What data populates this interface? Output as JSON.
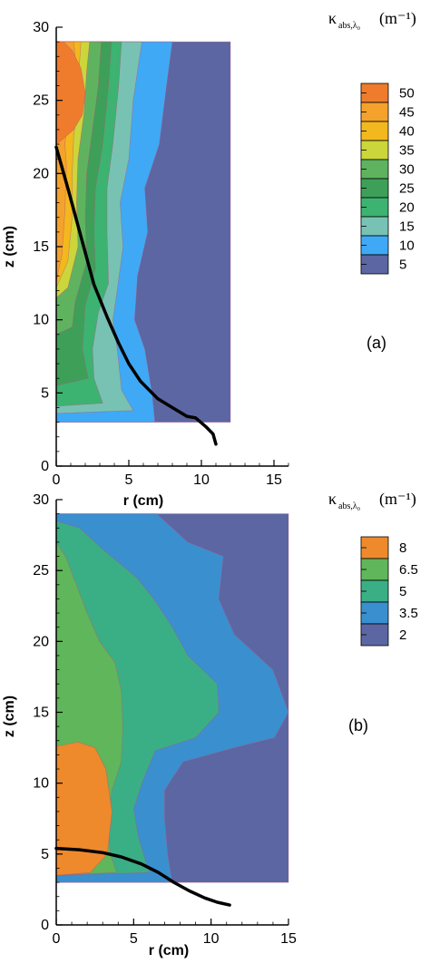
{
  "colors": {
    "c2": "#5b66a3",
    "c5": "#5b66a3",
    "c10": "#3fa9f5",
    "c15": "#78c2b4",
    "c20": "#3cb371",
    "c25": "#3e9f59",
    "c30": "#5fb35f",
    "c35": "#cbd63a",
    "c40": "#f2b81e",
    "c45": "#f4a22c",
    "c50": "#ee7c2c",
    "b2": "#5b66a3",
    "b35": "#3a8fcf",
    "b5": "#3aaf85",
    "b65": "#60b65a",
    "b8": "#ee8a2c",
    "trace": "#000000"
  },
  "chart_data": [
    {
      "type": "contour",
      "panel_label": "(a)",
      "xlabel": "r (cm)",
      "ylabel": "z (cm)",
      "xlim": [
        0,
        16
      ],
      "ylim": [
        0,
        30
      ],
      "xticks": [
        "0",
        "5",
        "10",
        "15"
      ],
      "yticks": [
        "0",
        "5",
        "10",
        "15",
        "20",
        "25",
        "30"
      ],
      "legend": {
        "title_main": "κ",
        "title_sub": "abs,λ₀",
        "title_unit": "(m⁻¹)",
        "levels": [
          "50",
          "45",
          "40",
          "35",
          "30",
          "25",
          "20",
          "15",
          "10",
          "5"
        ]
      },
      "bands": [
        {
          "level": 5,
          "color_key": "c5",
          "points": [
            [
              0,
              3
            ],
            [
              12,
              3
            ],
            [
              12,
              29
            ],
            [
              0,
              29
            ]
          ]
        },
        {
          "level": 10,
          "color_key": "c10",
          "points": [
            [
              0,
              3
            ],
            [
              6.8,
              3
            ],
            [
              6.6,
              5
            ],
            [
              6.1,
              8
            ],
            [
              5.4,
              10
            ],
            [
              5.6,
              13
            ],
            [
              6.3,
              16
            ],
            [
              6.1,
              19
            ],
            [
              7.1,
              22
            ],
            [
              7.6,
              26
            ],
            [
              8,
              29
            ],
            [
              0,
              29
            ]
          ]
        },
        {
          "level": 15,
          "color_key": "c15",
          "points": [
            [
              0,
              3.6
            ],
            [
              5.3,
              3.8
            ],
            [
              4.5,
              5.2
            ],
            [
              4.2,
              8
            ],
            [
              3.9,
              10
            ],
            [
              4.2,
              12
            ],
            [
              4.6,
              15
            ],
            [
              4.4,
              18
            ],
            [
              5,
              21
            ],
            [
              5.3,
              25
            ],
            [
              5.9,
              29
            ],
            [
              0,
              29
            ]
          ]
        },
        {
          "level": 20,
          "color_key": "c20",
          "points": [
            [
              0,
              4.1
            ],
            [
              3.2,
              4.3
            ],
            [
              2.6,
              6
            ],
            [
              2.5,
              8
            ],
            [
              2.9,
              10.5
            ],
            [
              3.6,
              12.5
            ],
            [
              3.5,
              16
            ],
            [
              3.5,
              19
            ],
            [
              3.9,
              22
            ],
            [
              4.3,
              26
            ],
            [
              4.5,
              29
            ],
            [
              0,
              29
            ]
          ]
        },
        {
          "level": 25,
          "color_key": "c25",
          "points": [
            [
              0,
              5.5
            ],
            [
              2.2,
              6
            ],
            [
              1.8,
              8
            ],
            [
              2,
              11
            ],
            [
              2.7,
              13.5
            ],
            [
              2.6,
              16
            ],
            [
              2.7,
              19
            ],
            [
              3.2,
              22
            ],
            [
              3.6,
              26
            ],
            [
              3.8,
              29
            ],
            [
              0,
              29
            ]
          ]
        },
        {
          "level": 30,
          "color_key": "c30",
          "points": [
            [
              0,
              9
            ],
            [
              1.1,
              9.5
            ],
            [
              1.3,
              11.2
            ],
            [
              2.1,
              14
            ],
            [
              2,
              17
            ],
            [
              2.1,
              20
            ],
            [
              2.5,
              23
            ],
            [
              2.9,
              26
            ],
            [
              3.1,
              29
            ],
            [
              0,
              29
            ]
          ]
        },
        {
          "level": 35,
          "color_key": "c35",
          "points": [
            [
              0,
              11.5
            ],
            [
              0.8,
              12.2
            ],
            [
              1.5,
              15
            ],
            [
              1.4,
              18
            ],
            [
              1.5,
              21
            ],
            [
              1.9,
              24
            ],
            [
              2.1,
              27
            ],
            [
              2.3,
              29
            ],
            [
              0,
              29
            ]
          ]
        },
        {
          "level": 40,
          "color_key": "c40",
          "points": [
            [
              0,
              12.2
            ],
            [
              0.8,
              14
            ],
            [
              1.1,
              17
            ],
            [
              1.1,
              20
            ],
            [
              1.2,
              22.5
            ],
            [
              1.5,
              25
            ],
            [
              1.6,
              27.5
            ],
            [
              1.7,
              29
            ],
            [
              0,
              29
            ]
          ]
        },
        {
          "level": 45,
          "color_key": "c45",
          "points": [
            [
              0,
              12.6
            ],
            [
              0.4,
              14.5
            ],
            [
              0.6,
              17.5
            ],
            [
              0.7,
              20.5
            ],
            [
              0.6,
              22
            ],
            [
              0.8,
              24
            ],
            [
              1.2,
              26
            ],
            [
              1.3,
              28
            ],
            [
              1.2,
              29
            ],
            [
              0,
              29
            ]
          ]
        },
        {
          "level": 50,
          "color_key": "c50",
          "points": [
            [
              0,
              22
            ],
            [
              0.4,
              22.3
            ],
            [
              1.2,
              23
            ],
            [
              1.8,
              24
            ],
            [
              2,
              25.5
            ],
            [
              1.7,
              27.2
            ],
            [
              1.1,
              28.4
            ],
            [
              0.5,
              29
            ],
            [
              0,
              29
            ]
          ]
        }
      ],
      "traces": [
        {
          "points": [
            [
              0,
              21.8
            ],
            [
              0.8,
              19
            ],
            [
              1.4,
              16.8
            ],
            [
              2,
              14.6
            ],
            [
              2.6,
              12.4
            ],
            [
              3.5,
              10.2
            ],
            [
              4.3,
              8.4
            ],
            [
              5,
              7
            ],
            [
              5.8,
              5.8
            ],
            [
              7,
              4.6
            ],
            [
              8,
              4
            ],
            [
              9,
              3.4
            ],
            [
              9.6,
              3.3
            ],
            [
              10.3,
              2.7
            ],
            [
              10.8,
              2.2
            ],
            [
              11,
              1.5
            ]
          ]
        }
      ],
      "box": {
        "xmax": 12,
        "ymin": 3,
        "ymax": 29
      }
    },
    {
      "type": "contour",
      "panel_label": "(b)",
      "xlabel": "r (cm)",
      "ylabel": "z (cm)",
      "xlim": [
        0,
        15
      ],
      "ylim": [
        0,
        30
      ],
      "xticks": [
        "0",
        "5",
        "10",
        "15"
      ],
      "yticks": [
        "0",
        "5",
        "10",
        "15",
        "20",
        "25",
        "30"
      ],
      "legend": {
        "title_main": "κ",
        "title_sub": "abs,λ₀",
        "title_unit": "(m⁻¹)",
        "levels": [
          "8",
          "6.5",
          "5",
          "3.5",
          "2"
        ]
      },
      "bands": [
        {
          "level": 2,
          "color_key": "b2",
          "points": [
            [
              0,
              3
            ],
            [
              15,
              3
            ],
            [
              15,
              29
            ],
            [
              0,
              29
            ]
          ]
        },
        {
          "level": 3.5,
          "color_key": "b35",
          "points": [
            [
              0,
              3
            ],
            [
              7.5,
              3
            ],
            [
              7.2,
              5
            ],
            [
              7,
              7.5
            ],
            [
              7,
              9.5
            ],
            [
              8.2,
              11.5
            ],
            [
              11.5,
              12.5
            ],
            [
              14.1,
              13.2
            ],
            [
              15,
              15
            ],
            [
              14,
              18
            ],
            [
              11.5,
              20.5
            ],
            [
              10.5,
              23
            ],
            [
              10.8,
              26
            ],
            [
              8.5,
              27
            ],
            [
              6.5,
              29
            ],
            [
              0,
              29
            ]
          ]
        },
        {
          "level": 5,
          "color_key": "b5",
          "points": [
            [
              0,
              3.5
            ],
            [
              6,
              3.7
            ],
            [
              5.3,
              6.2
            ],
            [
              5,
              8.2
            ],
            [
              5.6,
              10.2
            ],
            [
              6.4,
              12.3
            ],
            [
              9,
              13.2
            ],
            [
              10.5,
              15
            ],
            [
              10.4,
              17
            ],
            [
              8.5,
              19
            ],
            [
              7.5,
              21
            ],
            [
              6.3,
              23
            ],
            [
              5.2,
              24.5
            ],
            [
              3,
              26.5
            ],
            [
              1.5,
              28
            ],
            [
              0,
              28.5
            ]
          ]
        },
        {
          "level": 6.5,
          "color_key": "b65",
          "points": [
            [
              0,
              3.5
            ],
            [
              3.9,
              3.7
            ],
            [
              3.5,
              5
            ],
            [
              3.3,
              7.2
            ],
            [
              3.6,
              9.5
            ],
            [
              4.2,
              11.5
            ],
            [
              4.3,
              14
            ],
            [
              4.2,
              16.5
            ],
            [
              3.8,
              18.5
            ],
            [
              2.8,
              20
            ],
            [
              2,
              22
            ],
            [
              1.3,
              24
            ],
            [
              0.6,
              26
            ],
            [
              0,
              27
            ]
          ]
        },
        {
          "level": 8,
          "color_key": "b8",
          "points": [
            [
              0,
              3.5
            ],
            [
              2.2,
              3.7
            ],
            [
              3.3,
              5
            ],
            [
              3.6,
              8
            ],
            [
              3.2,
              11
            ],
            [
              2.5,
              12.5
            ],
            [
              1.4,
              12.9
            ],
            [
              0.5,
              12.7
            ],
            [
              0,
              12.6
            ]
          ]
        }
      ],
      "traces": [
        {
          "points": [
            [
              0,
              5.4
            ],
            [
              1.5,
              5.3
            ],
            [
              3,
              5.1
            ],
            [
              4.2,
              4.8
            ],
            [
              5.5,
              4.3
            ],
            [
              6.6,
              3.7
            ],
            [
              7.6,
              3
            ],
            [
              8.6,
              2.4
            ],
            [
              9.6,
              1.9
            ],
            [
              10.4,
              1.6
            ],
            [
              11.2,
              1.4
            ]
          ]
        }
      ],
      "box": {
        "xmax": 15,
        "ymin": 3,
        "ymax": 29
      }
    }
  ]
}
